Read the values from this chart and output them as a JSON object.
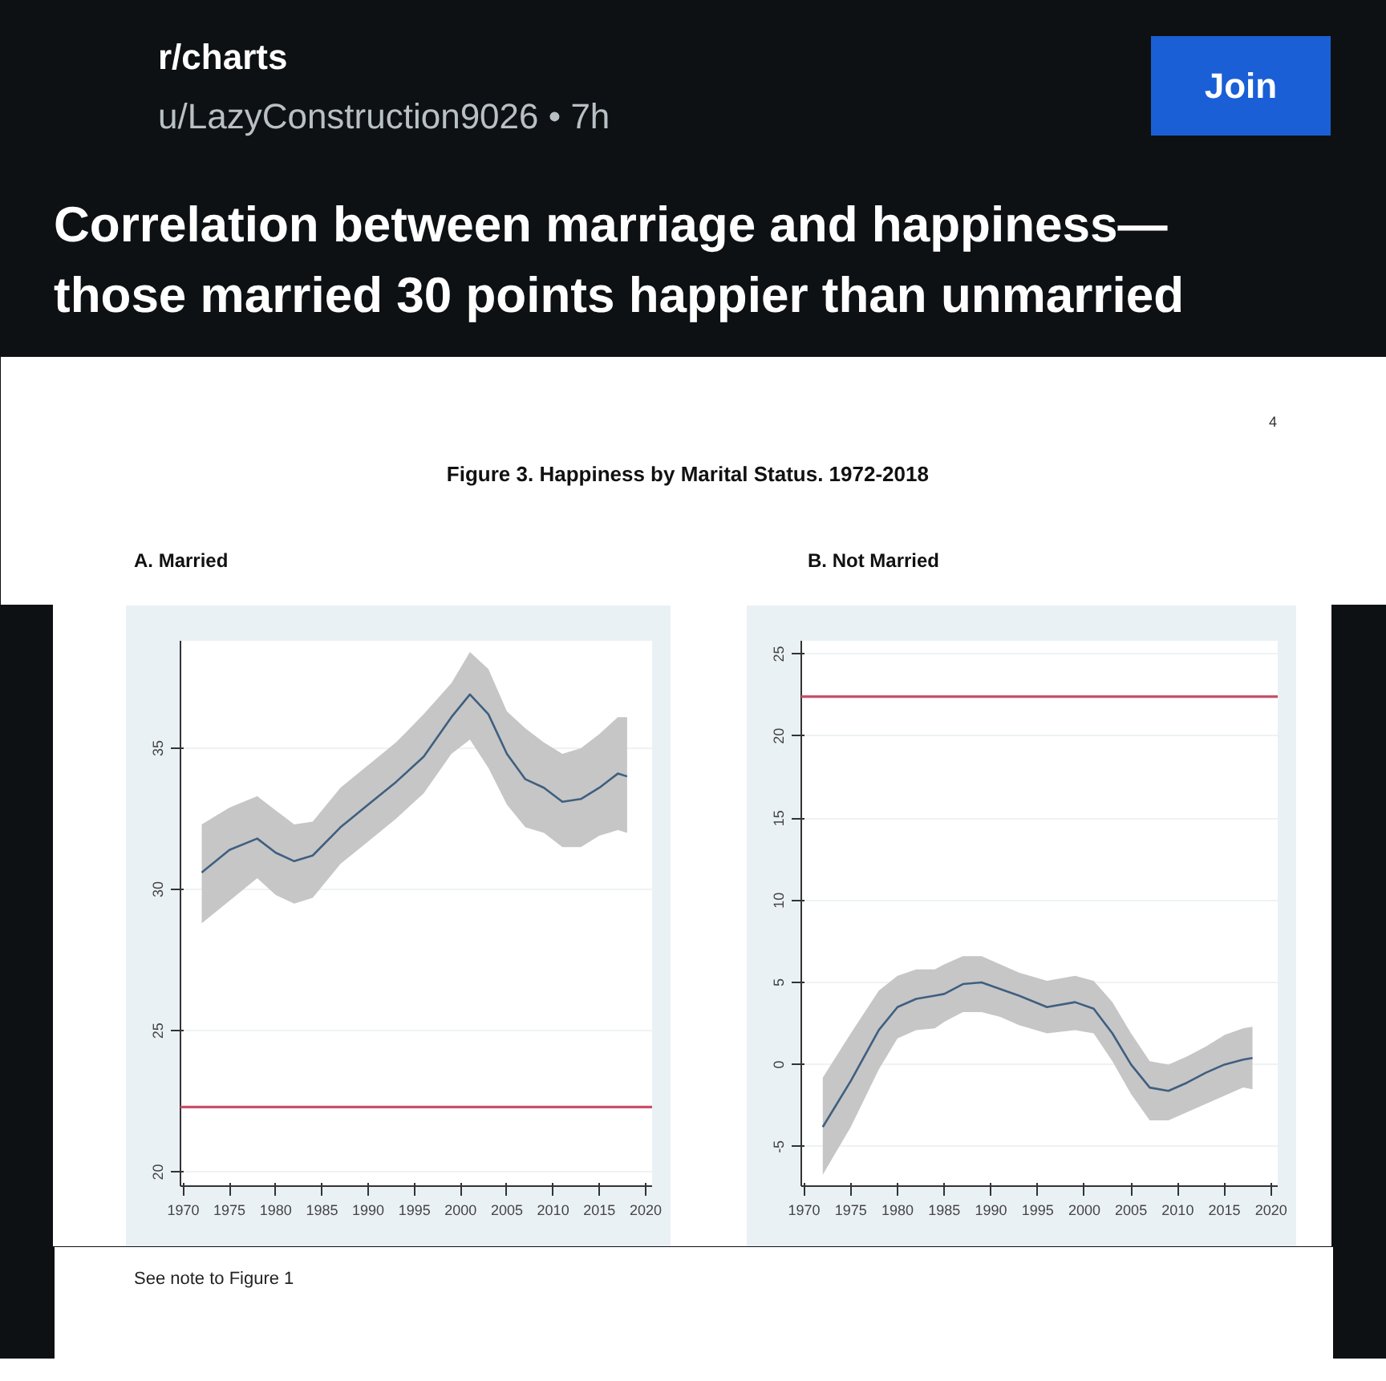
{
  "chart_data": [
    {
      "type": "other",
      "title": "Correlation between marriage and happiness— those married 30 points happier than unmarried",
      "subtitle": "Figure 3.  Happiness by Marital Status. 1972-2018",
      "annotations": [
        "r/charts",
        "u/LazyConstruction9026 • 7h",
        "Join",
        "4",
        "See note to Figure 1"
      ]
    },
    {
      "type": "line",
      "title": "A.  Married",
      "x": [
        1972,
        1975,
        1978,
        1980,
        1982,
        1984,
        1987,
        1990,
        1993,
        1996,
        1999,
        2001,
        2003,
        2005,
        2007,
        2009,
        2011,
        2013,
        2015,
        2017,
        2018
      ],
      "series": [
        {
          "color": "#3f5f80",
          "values": [
            30.6,
            31.4,
            31.8,
            31.3,
            31.0,
            31.2,
            32.2,
            33.0,
            33.8,
            34.7,
            36.1,
            36.9,
            36.2,
            34.8,
            33.9,
            33.6,
            33.1,
            33.2,
            33.6,
            34.1,
            34.0
          ],
          "lower": [
            28.8,
            29.6,
            30.4,
            29.8,
            29.5,
            29.7,
            30.9,
            31.7,
            32.5,
            33.4,
            34.8,
            35.3,
            34.3,
            33.0,
            32.2,
            32.0,
            31.5,
            31.5,
            31.9,
            32.1,
            32.0
          ],
          "upper": [
            32.3,
            32.9,
            33.3,
            32.8,
            32.3,
            32.4,
            33.6,
            34.4,
            35.2,
            36.2,
            37.3,
            38.4,
            37.8,
            36.3,
            35.7,
            35.2,
            34.8,
            35.0,
            35.5,
            36.1,
            36.1
          ]
        }
      ],
      "ref_lines": [
        {
          "axis": "y",
          "value": 22.3,
          "color": "#c8506a"
        }
      ],
      "xlim": [
        1969.7,
        2020.7
      ],
      "ylim": [
        19.5,
        38.8
      ],
      "xticks": [
        1970,
        1975,
        1980,
        1985,
        1990,
        1995,
        2000,
        2005,
        2010,
        2015,
        2020
      ],
      "yticks": [
        20,
        25,
        30,
        35
      ],
      "grid": "y"
    },
    {
      "type": "line",
      "title": "B. Not Married",
      "x": [
        1972,
        1975,
        1978,
        1980,
        1982,
        1984,
        1985,
        1987,
        1989,
        1991,
        1993,
        1996,
        1999,
        2001,
        2003,
        2005,
        2007,
        2009,
        2011,
        2013,
        2015,
        2017,
        2018
      ],
      "series": [
        {
          "color": "#3f5f80",
          "values": [
            -3.8,
            -1.0,
            2.1,
            3.5,
            4.0,
            4.2,
            4.3,
            4.9,
            5.0,
            4.6,
            4.2,
            3.5,
            3.8,
            3.4,
            1.9,
            0.0,
            -1.4,
            -1.6,
            -1.1,
            -0.5,
            0.0,
            0.3,
            0.4
          ],
          "lower": [
            -6.7,
            -3.8,
            -0.3,
            1.6,
            2.1,
            2.2,
            2.6,
            3.2,
            3.2,
            2.9,
            2.4,
            1.9,
            2.1,
            1.9,
            0.2,
            -1.8,
            -3.4,
            -3.4,
            -2.9,
            -2.4,
            -1.9,
            -1.4,
            -1.5
          ],
          "upper": [
            -0.8,
            1.9,
            4.5,
            5.4,
            5.8,
            5.8,
            6.1,
            6.6,
            6.6,
            6.1,
            5.6,
            5.1,
            5.4,
            5.1,
            3.8,
            1.9,
            0.2,
            0.0,
            0.5,
            1.1,
            1.8,
            2.2,
            2.3
          ]
        }
      ],
      "ref_lines": [
        {
          "axis": "y",
          "value": 22.4,
          "color": "#c8506a"
        }
      ],
      "xlim": [
        1969.7,
        2020.7
      ],
      "ylim": [
        -7.4,
        25.8
      ],
      "xticks": [
        1970,
        1975,
        1980,
        1985,
        1990,
        1995,
        2000,
        2005,
        2010,
        2015,
        2020
      ],
      "yticks": [
        -5,
        0,
        5,
        10,
        15,
        20,
        25
      ],
      "grid": "y"
    }
  ]
}
